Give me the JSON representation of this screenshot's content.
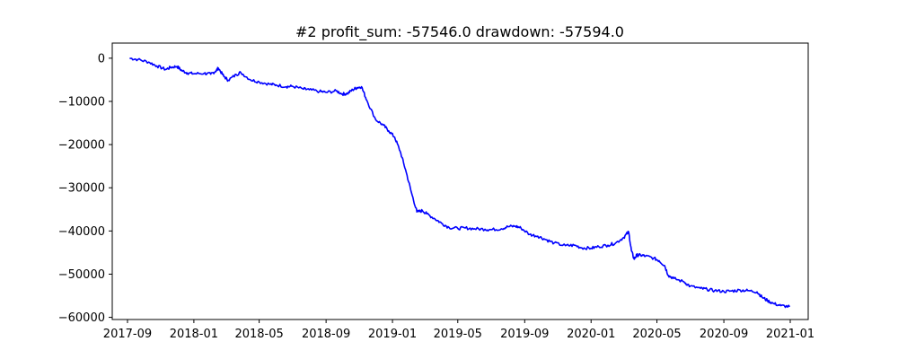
{
  "chart_data": {
    "type": "line",
    "title": "#2   profit_sum: -57546.0 drawdown: -57594.0",
    "xlabel": "",
    "ylabel": "",
    "ylim": [
      -60500,
      3500
    ],
    "xlim": [
      "2017-08-04",
      "2021-02-03"
    ],
    "grid": false,
    "x_ticks": [
      "2017-09",
      "2018-01",
      "2018-05",
      "2018-09",
      "2019-01",
      "2019-05",
      "2019-09",
      "2020-01",
      "2020-05",
      "2020-09",
      "2021-01"
    ],
    "y_ticks": [
      0,
      -10000,
      -20000,
      -30000,
      -40000,
      -50000,
      -60000
    ],
    "y_tick_labels": [
      "0",
      "−10000",
      "−20000",
      "−30000",
      "−40000",
      "−50000",
      "−60000"
    ],
    "series": [
      {
        "color": "#0000ff",
        "x": [
          "2017-09-05",
          "2017-09-20",
          "2017-10-10",
          "2017-10-25",
          "2017-11-10",
          "2017-11-20",
          "2017-12-01",
          "2017-12-10",
          "2017-12-20",
          "2018-01-01",
          "2018-01-20",
          "2018-02-01",
          "2018-02-10",
          "2018-02-15",
          "2018-02-25",
          "2018-03-05",
          "2018-03-20",
          "2018-03-28",
          "2018-04-15",
          "2018-05-01",
          "2018-05-20",
          "2018-06-01",
          "2018-06-20",
          "2018-07-01",
          "2018-07-20",
          "2018-08-01",
          "2018-08-20",
          "2018-09-01",
          "2018-09-20",
          "2018-10-01",
          "2018-10-10",
          "2018-10-20",
          "2018-10-28",
          "2018-11-05",
          "2018-11-15",
          "2018-12-01",
          "2018-12-15",
          "2018-12-25",
          "2019-01-05",
          "2019-01-15",
          "2019-01-25",
          "2019-02-05",
          "2019-02-15",
          "2019-02-25",
          "2019-03-05",
          "2019-03-20",
          "2019-04-01",
          "2019-04-15",
          "2019-05-01",
          "2019-05-15",
          "2019-06-01",
          "2019-06-20",
          "2019-07-01",
          "2019-07-20",
          "2019-08-01",
          "2019-08-15",
          "2019-08-25",
          "2019-09-10",
          "2019-09-25",
          "2019-10-10",
          "2019-10-25",
          "2019-11-15",
          "2019-12-01",
          "2019-12-15",
          "2020-01-01",
          "2020-01-15",
          "2020-02-01",
          "2020-02-15",
          "2020-03-01",
          "2020-03-10",
          "2020-03-15",
          "2020-03-20",
          "2020-03-25",
          "2020-04-01",
          "2020-04-10",
          "2020-04-25",
          "2020-05-05",
          "2020-05-15",
          "2020-05-22",
          "2020-06-01",
          "2020-06-20",
          "2020-07-01",
          "2020-07-20",
          "2020-08-01",
          "2020-08-15",
          "2020-09-01",
          "2020-09-15",
          "2020-10-01",
          "2020-10-15",
          "2020-11-01",
          "2020-11-10",
          "2020-11-20",
          "2020-12-01",
          "2020-12-15",
          "2020-12-31"
        ],
        "y": [
          0,
          -300,
          -900,
          -1800,
          -2600,
          -2100,
          -1900,
          -2900,
          -3400,
          -3600,
          -3500,
          -3700,
          -3000,
          -2300,
          -4200,
          -5100,
          -3800,
          -3300,
          -5000,
          -5500,
          -6000,
          -6200,
          -6600,
          -6500,
          -7100,
          -7300,
          -7700,
          -7900,
          -7600,
          -8300,
          -8200,
          -7300,
          -6800,
          -6600,
          -9800,
          -14200,
          -15500,
          -16800,
          -18300,
          -21500,
          -25800,
          -31200,
          -35600,
          -35300,
          -36000,
          -37200,
          -38200,
          -39200,
          -39400,
          -39300,
          -39500,
          -39600,
          -39700,
          -39500,
          -39000,
          -38900,
          -39300,
          -40800,
          -41200,
          -42000,
          -42800,
          -43400,
          -43300,
          -43900,
          -44000,
          -43600,
          -43300,
          -42800,
          -41500,
          -40200,
          -44500,
          -46500,
          -45600,
          -45600,
          -45800,
          -46300,
          -46900,
          -48000,
          -50300,
          -51000,
          -51800,
          -52800,
          -53300,
          -53500,
          -53800,
          -54000,
          -53900,
          -53700,
          -53800,
          -54100,
          -55300,
          -56100,
          -56800,
          -57300,
          -57546
        ]
      }
    ]
  }
}
